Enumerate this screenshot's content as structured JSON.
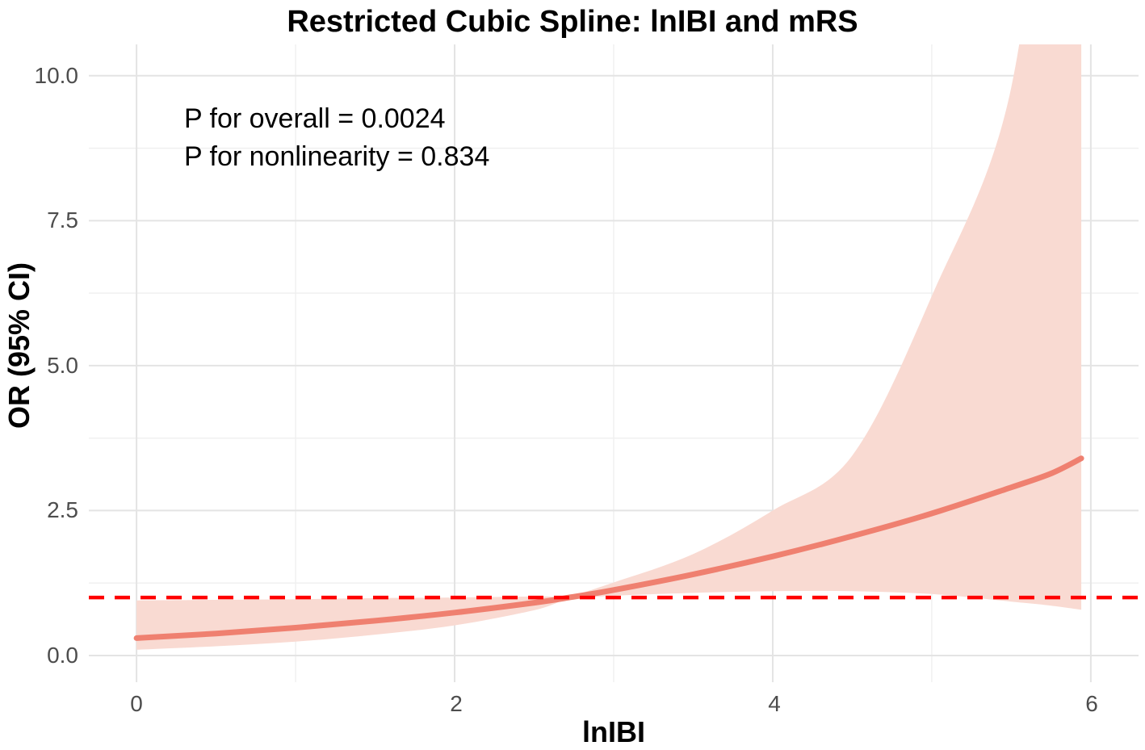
{
  "chart_data": {
    "type": "line",
    "title": "Restricted Cubic Spline: lnIBI and mRS",
    "xlabel": "lnIBI",
    "ylabel": "OR (95% CI)",
    "annotations": [
      "P for overall = 0.0024",
      "P for nonlinearity = 0.834"
    ],
    "xtick_labels": [
      "0",
      "2",
      "4",
      "6"
    ],
    "x_ticks": [
      0,
      2,
      4,
      6
    ],
    "x_minor_ticks": [
      1,
      3,
      5
    ],
    "ytick_labels": [
      "0.0",
      "2.5",
      "5.0",
      "7.5",
      "10.0"
    ],
    "y_ticks": [
      0,
      2.5,
      5,
      7.5,
      10
    ],
    "y_minor_ticks": [
      1.25,
      3.75,
      6.25,
      8.75
    ],
    "xlim": [
      -0.3,
      6.3
    ],
    "ylim": [
      -0.46,
      10.54
    ],
    "grid": true,
    "legend_position": "none",
    "reference_line": {
      "or": 1.0,
      "style": "dashed"
    },
    "x": [
      0,
      0.5,
      1,
      1.5,
      2,
      2.5,
      2.72,
      3,
      3.5,
      4,
      4.5,
      5,
      5.5,
      5.75,
      5.94
    ],
    "series": [
      {
        "name": "OR estimate",
        "values": [
          0.3,
          0.38,
          0.48,
          0.6,
          0.74,
          0.91,
          1.0,
          1.13,
          1.4,
          1.71,
          2.06,
          2.45,
          2.9,
          3.14,
          3.4
        ]
      },
      {
        "name": "95% CI lower",
        "values": [
          0.1,
          0.16,
          0.24,
          0.36,
          0.52,
          0.78,
          0.97,
          1.03,
          1.08,
          1.11,
          1.11,
          1.06,
          0.93,
          0.86,
          0.79
        ]
      },
      {
        "name": "95% CI upper (clipped at plot top)",
        "values": [
          0.95,
          0.96,
          0.97,
          0.99,
          1.0,
          1.02,
          1.03,
          1.26,
          1.75,
          2.5,
          3.45,
          6.2,
          9.8,
          16.0,
          24.0
        ]
      }
    ],
    "colors": {
      "curve": "#EF8070",
      "ci_ribbon": "#F9DAD2",
      "reference_line": "#FF0000",
      "grid_major": "#E4E4E4",
      "grid_minor": "#EFEFEF",
      "tick_text": "#4D4D4D",
      "title_text": "#000000",
      "background": "#FFFFFF"
    }
  }
}
